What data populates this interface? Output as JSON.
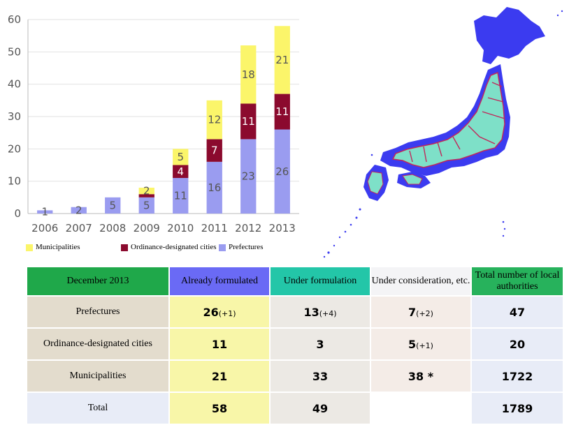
{
  "chart_data": {
    "type": "bar",
    "stacked": true,
    "categories": [
      "2006",
      "2007",
      "2008",
      "2009",
      "2010",
      "2011",
      "2012",
      "2013"
    ],
    "series": [
      {
        "name": "Prefectures",
        "color": "#9a9cf0",
        "values": [
          1,
          2,
          5,
          5,
          11,
          16,
          23,
          26
        ],
        "labels": [
          "1",
          "2",
          "5",
          "5",
          "11",
          "16",
          "23",
          "26"
        ]
      },
      {
        "name": "Ordinance-designated cities",
        "color": "#8b0a2e",
        "values": [
          0,
          0,
          0,
          1,
          4,
          7,
          11,
          11
        ],
        "labels": [
          "",
          "",
          "",
          "",
          "4",
          "7",
          "11",
          "11"
        ]
      },
      {
        "name": "Municipalities",
        "color": "#fbf56a",
        "values": [
          0,
          0,
          0,
          2,
          5,
          12,
          18,
          21
        ],
        "labels": [
          "",
          "",
          "",
          "2",
          "5",
          "12",
          "18",
          "21"
        ]
      }
    ],
    "yticks": [
      0,
      10,
      20,
      30,
      40,
      50,
      60
    ],
    "ylim": [
      0,
      60
    ],
    "legend_position": "bottom-left"
  },
  "table": {
    "header": [
      "December 2013",
      "Already formulated",
      "Under formulation",
      "Under consideration, etc.",
      "Total number of local authorities"
    ],
    "rows": [
      {
        "label": "Prefectures",
        "values": [
          {
            "main": "26",
            "delta": "(+1)"
          },
          {
            "main": "13",
            "delta": "(+4)"
          },
          {
            "main": "7",
            "delta": "(+2)"
          },
          {
            "main": "47",
            "delta": ""
          }
        ]
      },
      {
        "label": "Ordinance-designated cities",
        "values": [
          {
            "main": "11",
            "delta": ""
          },
          {
            "main": "3",
            "delta": ""
          },
          {
            "main": "5",
            "delta": "(+1)"
          },
          {
            "main": "20",
            "delta": ""
          }
        ]
      },
      {
        "label": "Municipalities",
        "values": [
          {
            "main": "21",
            "delta": ""
          },
          {
            "main": "33",
            "delta": ""
          },
          {
            "main": "38",
            "delta": " *"
          },
          {
            "main": "1722",
            "delta": ""
          }
        ]
      },
      {
        "label": "Total",
        "values": [
          {
            "main": "58",
            "delta": ""
          },
          {
            "main": "49",
            "delta": ""
          },
          {
            "main": "",
            "delta": ""
          },
          {
            "main": "1789",
            "delta": ""
          }
        ]
      }
    ]
  },
  "colors": {
    "header_label": "#1fa84a",
    "header_formulated": "#6a6af5",
    "header_formulation": "#23c6a8",
    "header_consideration": "#f4f4f6",
    "header_total": "#27b25c",
    "row_label": "#e3dccd",
    "col_formulated": "#f8f6a8",
    "col_formulation": "#ece9e4",
    "col_consideration": "#f4ece7",
    "col_total": "#e8ecf7",
    "map_land": "#3b3bf0",
    "map_fill": "#7ee0c8",
    "map_border": "#c0285a"
  },
  "map_icon": "japan-map"
}
